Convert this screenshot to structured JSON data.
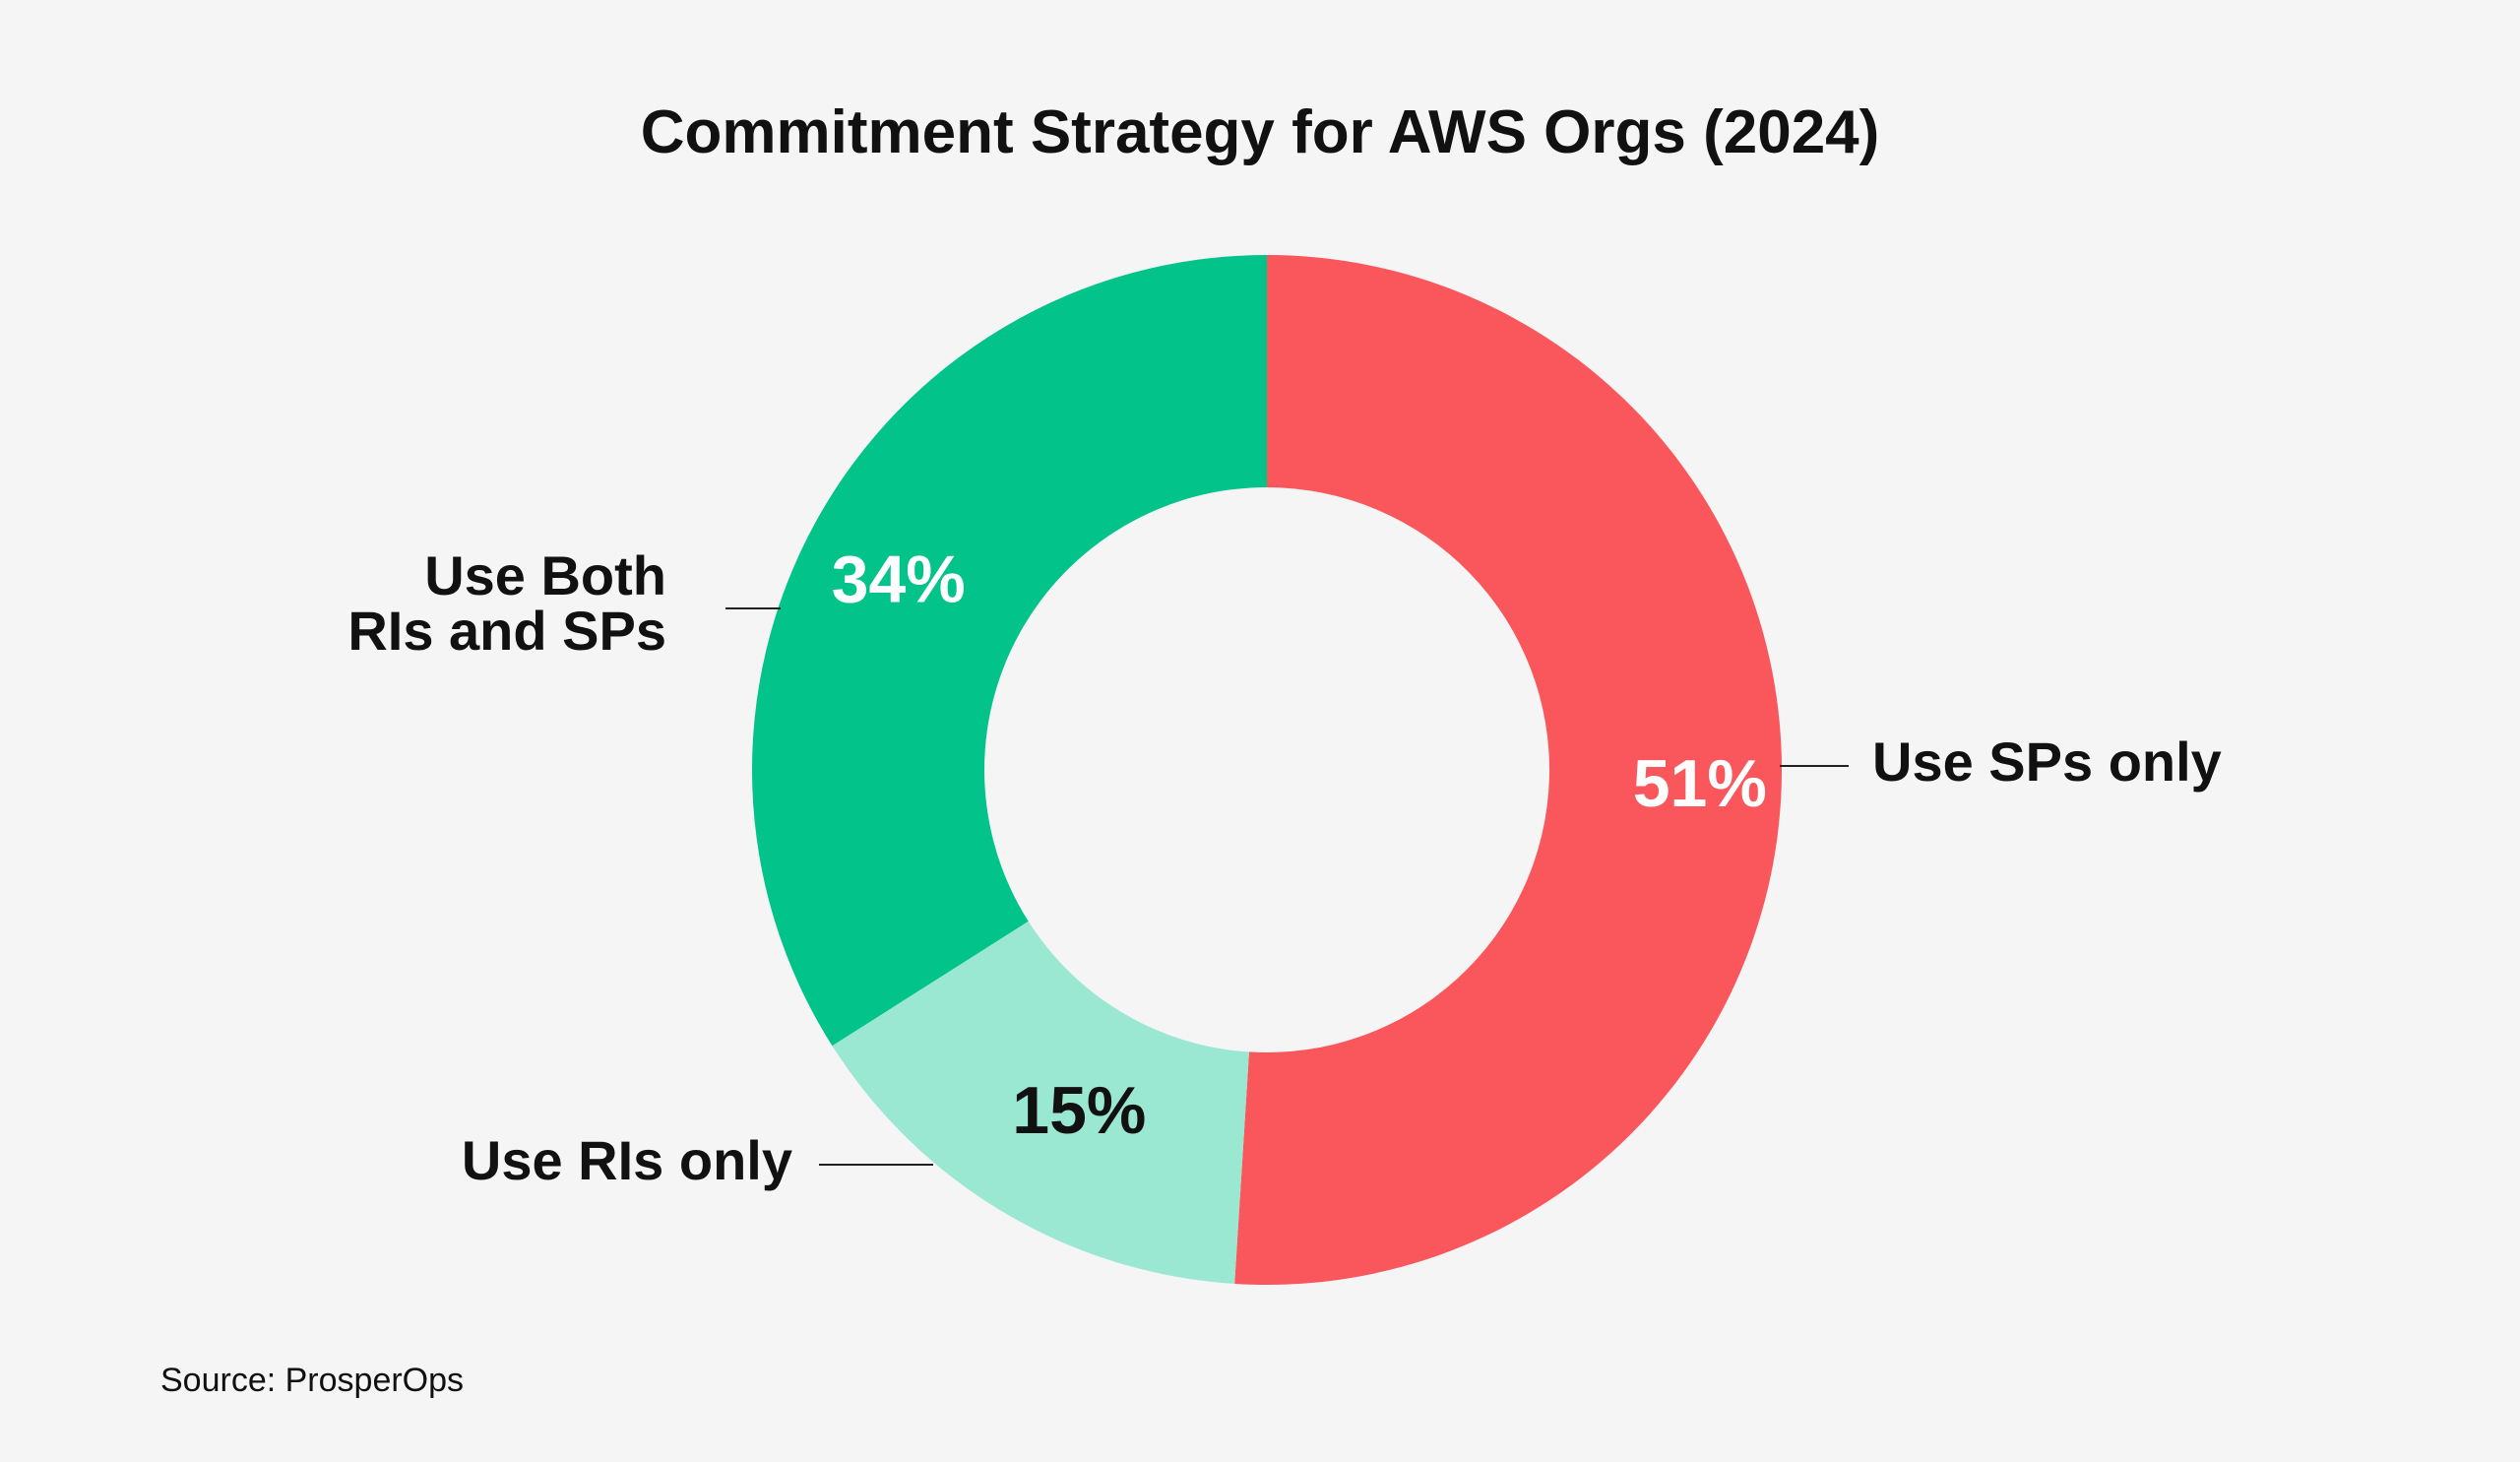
{
  "chart_data": {
    "type": "pie",
    "donut": true,
    "title": "Commitment Strategy for AWS Orgs (2024)",
    "slices": [
      {
        "label_lines": [
          "Use SPs only"
        ],
        "value": 51,
        "value_label": "51%",
        "color": "#fa575c",
        "value_label_color": "#ffffff"
      },
      {
        "label_lines": [
          "Use RIs only"
        ],
        "value": 15,
        "value_label": "15%",
        "color": "#9be8d2",
        "value_label_color": "#111111"
      },
      {
        "label_lines": [
          "Use Both",
          "RIs and SPs"
        ],
        "value": 34,
        "value_label": "34%",
        "color": "#02c48b",
        "value_label_color": "#ffffff"
      }
    ],
    "legend": "none",
    "source": "Source: ProsperOps"
  }
}
